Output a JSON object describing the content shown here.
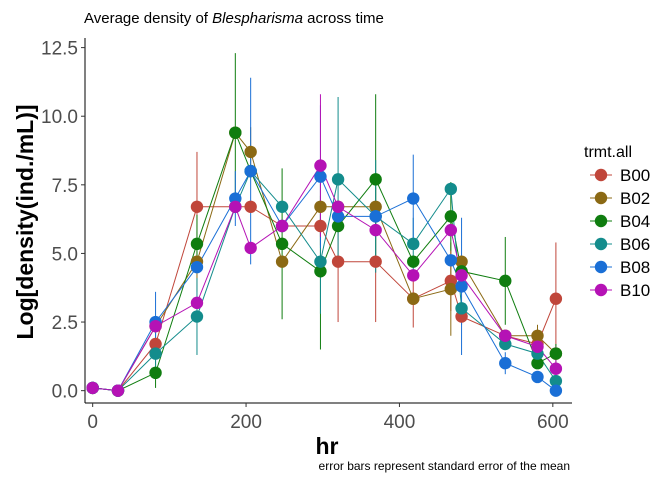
{
  "chart_data": {
    "type": "line",
    "title_prefix": "Average density of ",
    "title_italic": "Blespharisma",
    "title_suffix": " across time",
    "xlabel": "hr",
    "ylabel": "Log[density(ind./mL)]",
    "caption": "error bars represent standard error of the mean",
    "xlim": [
      -10,
      625
    ],
    "ylim": [
      -0.45,
      12.85
    ],
    "xticks": [
      0,
      200,
      400,
      600
    ],
    "yticks": [
      0.0,
      2.5,
      5.0,
      7.5,
      10.0,
      12.5
    ],
    "ytick_labels": [
      "0.0",
      "2.5",
      "5.0",
      "7.5",
      "10.0",
      "12.5"
    ],
    "grid": false,
    "legend": {
      "title": "trmt.all",
      "position": "right"
    },
    "series": [
      {
        "name": "B00",
        "color": "#c0463a",
        "points": [
          {
            "x": 0,
            "y": 0.1
          },
          {
            "x": 33,
            "y": 0.0
          },
          {
            "x": 82,
            "y": 1.7,
            "lo": 1.7,
            "hi": 1.7
          },
          {
            "x": 136,
            "y": 6.7,
            "lo": 4.7,
            "hi": 8.7
          },
          {
            "x": 186,
            "y": 6.7
          },
          {
            "x": 206,
            "y": 6.7
          },
          {
            "x": 247,
            "y": 6.0
          },
          {
            "x": 297,
            "y": 6.0
          },
          {
            "x": 320,
            "y": 4.7,
            "lo": 2.5,
            "hi": 6.9
          },
          {
            "x": 369,
            "y": 4.7,
            "lo": 2.5,
            "hi": 6.9
          },
          {
            "x": 418,
            "y": 3.35,
            "lo": 2.3,
            "hi": 4.4
          },
          {
            "x": 467,
            "y": 4.0,
            "lo": 2.9,
            "hi": 5.1
          },
          {
            "x": 481,
            "y": 2.7,
            "lo": 2.4,
            "hi": 3.0
          },
          {
            "x": 538,
            "y": 2.0
          },
          {
            "x": 580,
            "y": 1.7
          },
          {
            "x": 604,
            "y": 3.35,
            "lo": 1.2,
            "hi": 5.4
          }
        ]
      },
      {
        "name": "B02",
        "color": "#8b6914",
        "points": [
          {
            "x": 0,
            "y": 0.1
          },
          {
            "x": 33,
            "y": 0.0
          },
          {
            "x": 82,
            "y": 2.35
          },
          {
            "x": 136,
            "y": 4.7,
            "lo": 3.6,
            "hi": 5.8
          },
          {
            "x": 186,
            "y": 9.4
          },
          {
            "x": 206,
            "y": 8.7,
            "lo": 7.8,
            "hi": 9.6
          },
          {
            "x": 247,
            "y": 4.7
          },
          {
            "x": 297,
            "y": 6.7,
            "lo": 5.3,
            "hi": 8.1
          },
          {
            "x": 320,
            "y": 6.7
          },
          {
            "x": 369,
            "y": 6.7,
            "lo": 6.0,
            "hi": 7.4
          },
          {
            "x": 418,
            "y": 3.35
          },
          {
            "x": 467,
            "y": 3.7,
            "lo": 2.0,
            "hi": 5.4
          },
          {
            "x": 481,
            "y": 4.7
          },
          {
            "x": 538,
            "y": 2.0
          },
          {
            "x": 580,
            "y": 2.0,
            "lo": 1.6,
            "hi": 2.4
          },
          {
            "x": 604,
            "y": 1.35
          }
        ]
      },
      {
        "name": "B04",
        "color": "#0f7d0f",
        "points": [
          {
            "x": 0,
            "y": 0.1
          },
          {
            "x": 33,
            "y": 0.0
          },
          {
            "x": 82,
            "y": 0.65,
            "lo": 0.1,
            "hi": 1.2
          },
          {
            "x": 136,
            "y": 5.35,
            "lo": 4.3,
            "hi": 6.4
          },
          {
            "x": 186,
            "y": 9.4,
            "lo": 6.6,
            "hi": 12.3
          },
          {
            "x": 206,
            "y": 8.0
          },
          {
            "x": 247,
            "y": 5.35,
            "lo": 2.6,
            "hi": 8.1
          },
          {
            "x": 297,
            "y": 4.35,
            "lo": 1.5,
            "hi": 7.1
          },
          {
            "x": 320,
            "y": 6.0
          },
          {
            "x": 369,
            "y": 7.7,
            "lo": 4.6,
            "hi": 10.8
          },
          {
            "x": 418,
            "y": 4.7
          },
          {
            "x": 467,
            "y": 6.35,
            "lo": 5.1,
            "hi": 7.6
          },
          {
            "x": 481,
            "y": 4.35
          },
          {
            "x": 538,
            "y": 4.0,
            "lo": 2.4,
            "hi": 5.6
          },
          {
            "x": 580,
            "y": 1.0
          },
          {
            "x": 604,
            "y": 1.35,
            "lo": 1.0,
            "hi": 1.7
          }
        ]
      },
      {
        "name": "B06",
        "color": "#138c8c",
        "points": [
          {
            "x": 0,
            "y": 0.1
          },
          {
            "x": 33,
            "y": 0.0
          },
          {
            "x": 82,
            "y": 1.35,
            "lo": 0.6,
            "hi": 2.1
          },
          {
            "x": 136,
            "y": 2.7,
            "lo": 1.3,
            "hi": 4.1
          },
          {
            "x": 186,
            "y": 6.7
          },
          {
            "x": 206,
            "y": 8.0
          },
          {
            "x": 247,
            "y": 6.7
          },
          {
            "x": 297,
            "y": 4.7,
            "lo": 2.8,
            "hi": 6.6
          },
          {
            "x": 320,
            "y": 7.7,
            "lo": 4.7,
            "hi": 10.7
          },
          {
            "x": 369,
            "y": 6.35,
            "lo": 4.3,
            "hi": 8.4
          },
          {
            "x": 418,
            "y": 5.35,
            "lo": 4.4,
            "hi": 6.3
          },
          {
            "x": 467,
            "y": 7.35
          },
          {
            "x": 481,
            "y": 3.0
          },
          {
            "x": 538,
            "y": 1.7
          },
          {
            "x": 580,
            "y": 1.35
          },
          {
            "x": 604,
            "y": 0.35
          }
        ]
      },
      {
        "name": "B08",
        "color": "#1a6fd6",
        "points": [
          {
            "x": 0,
            "y": 0.1
          },
          {
            "x": 33,
            "y": 0.0
          },
          {
            "x": 82,
            "y": 2.5,
            "lo": 1.5,
            "hi": 3.6
          },
          {
            "x": 136,
            "y": 4.5
          },
          {
            "x": 186,
            "y": 7.0,
            "lo": 6.0,
            "hi": 8.0
          },
          {
            "x": 206,
            "y": 8.0,
            "lo": 4.6,
            "hi": 11.4
          },
          {
            "x": 247,
            "y": 6.0
          },
          {
            "x": 297,
            "y": 7.8,
            "lo": 5.2,
            "hi": 10.4
          },
          {
            "x": 320,
            "y": 6.35
          },
          {
            "x": 369,
            "y": 6.35
          },
          {
            "x": 418,
            "y": 7.0,
            "lo": 5.4,
            "hi": 8.6
          },
          {
            "x": 467,
            "y": 4.75
          },
          {
            "x": 481,
            "y": 3.8,
            "lo": 1.3,
            "hi": 6.3
          },
          {
            "x": 538,
            "y": 1.0,
            "lo": 0.6,
            "hi": 1.4
          },
          {
            "x": 580,
            "y": 0.5,
            "lo": 0.3,
            "hi": 0.7
          },
          {
            "x": 604,
            "y": 0.0
          }
        ]
      },
      {
        "name": "B10",
        "color": "#b512b5",
        "points": [
          {
            "x": 0,
            "y": 0.1
          },
          {
            "x": 33,
            "y": 0.0
          },
          {
            "x": 82,
            "y": 2.35
          },
          {
            "x": 136,
            "y": 3.2
          },
          {
            "x": 186,
            "y": 6.7
          },
          {
            "x": 206,
            "y": 5.2
          },
          {
            "x": 247,
            "y": 6.0
          },
          {
            "x": 297,
            "y": 8.2,
            "lo": 5.6,
            "hi": 10.8
          },
          {
            "x": 320,
            "y": 6.7
          },
          {
            "x": 369,
            "y": 5.85
          },
          {
            "x": 418,
            "y": 4.2
          },
          {
            "x": 467,
            "y": 5.85
          },
          {
            "x": 481,
            "y": 4.2
          },
          {
            "x": 538,
            "y": 2.0
          },
          {
            "x": 580,
            "y": 1.6
          },
          {
            "x": 604,
            "y": 0.8,
            "lo": 0.0,
            "hi": 1.6
          }
        ]
      }
    ]
  }
}
